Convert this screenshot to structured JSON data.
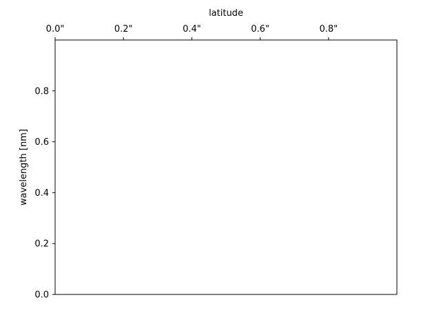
{
  "chart_data": {
    "type": "line",
    "title": "",
    "xlabel": "latitude",
    "ylabel": "wavelength [nm]",
    "xlim": [
      0,
      1
    ],
    "ylim": [
      0,
      1
    ],
    "x_axis_position": "top",
    "x_ticks": [
      0.0,
      0.2,
      0.4,
      0.6,
      0.8
    ],
    "x_tick_labels": [
      "0.0\"",
      "0.2\"",
      "0.4\"",
      "0.6\"",
      "0.8\""
    ],
    "y_ticks": [
      0.0,
      0.2,
      0.4,
      0.6,
      0.8
    ],
    "y_tick_labels": [
      "0.0",
      "0.2",
      "0.4",
      "0.6",
      "0.8"
    ],
    "series": [],
    "grid": false,
    "legend": "none"
  }
}
